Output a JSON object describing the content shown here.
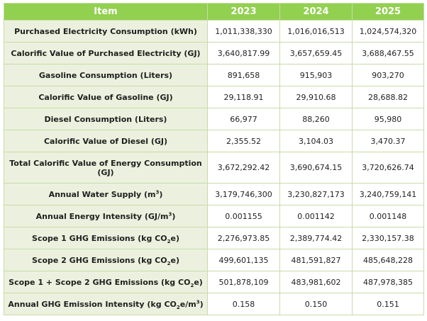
{
  "header": {
    "item": "Item",
    "y2023": "2023",
    "y2024": "2024",
    "y2025": "2025"
  },
  "rows": [
    {
      "label_pre": "Purchased Electricity Consumption (kWh)",
      "values": [
        "1,011,338,330",
        "1,016,016,513",
        "1,024,574,320"
      ]
    },
    {
      "label_pre": "Calorific Value of Purchased Electricity (GJ)",
      "values": [
        "3,640,817.99",
        "3,657,659.45",
        "3,688,467.55"
      ]
    },
    {
      "label_pre": "Gasoline Consumption (Liters)",
      "values": [
        "891,658",
        "915,903",
        "903,270"
      ]
    },
    {
      "label_pre": "Calorific Value of Gasoline (GJ)",
      "values": [
        "29,118.91",
        "29,910.68",
        "28,688.82"
      ]
    },
    {
      "label_pre": "Diesel Consumption (Liters)",
      "values": [
        "66,977",
        "88,260",
        "95,980"
      ]
    },
    {
      "label_pre": "Calorific Value of Diesel (GJ)",
      "values": [
        "2,355.52",
        "3,104.03",
        "3,470.37"
      ]
    },
    {
      "label_pre": "Total Calorific Value of Energy Consumption (GJ)",
      "values": [
        "3,672,292.42",
        "3,690,674.15",
        "3,720,626.74"
      ]
    },
    {
      "label_pre": "Annual Water Supply (m",
      "label_sup": "3",
      "label_post": ")",
      "values": [
        "3,179,746,300",
        "3,230,827,173",
        "3,240,759,141"
      ]
    },
    {
      "label_pre": "Annual Energy Intensity (GJ/m",
      "label_sup": "3",
      "label_post": ")",
      "values": [
        "0.001155",
        "0.001142",
        "0.001148"
      ]
    },
    {
      "label_pre": "Scope 1 GHG Emissions (kg CO",
      "label_sub": "2",
      "label_post": "e)",
      "values": [
        "2,276,973.85",
        "2,389,774.42",
        "2,330,157.38"
      ]
    },
    {
      "label_pre": "Scope 2 GHG Emissions (kg CO",
      "label_sub": "2",
      "label_post": "e)",
      "values": [
        "499,601,135",
        "481,591,827",
        "485,648,228"
      ]
    },
    {
      "label_pre": "Scope 1 + Scope 2 GHG Emissions (kg CO",
      "label_sub": "2",
      "label_post": "e)",
      "values": [
        "501,878,109",
        "483,981,602",
        "487,978,385"
      ]
    },
    {
      "label_pre": "Annual GHG Emission Intensity (kg CO",
      "label_sub": "2",
      "label_mid": "e/m",
      "label_sup": "3",
      "label_post": ")",
      "values": [
        "0.158",
        "0.150",
        "0.151"
      ]
    }
  ],
  "colors": {
    "header_bg": "#92d050",
    "label_bg": "#ebf1de",
    "border": "#c9dba8"
  }
}
